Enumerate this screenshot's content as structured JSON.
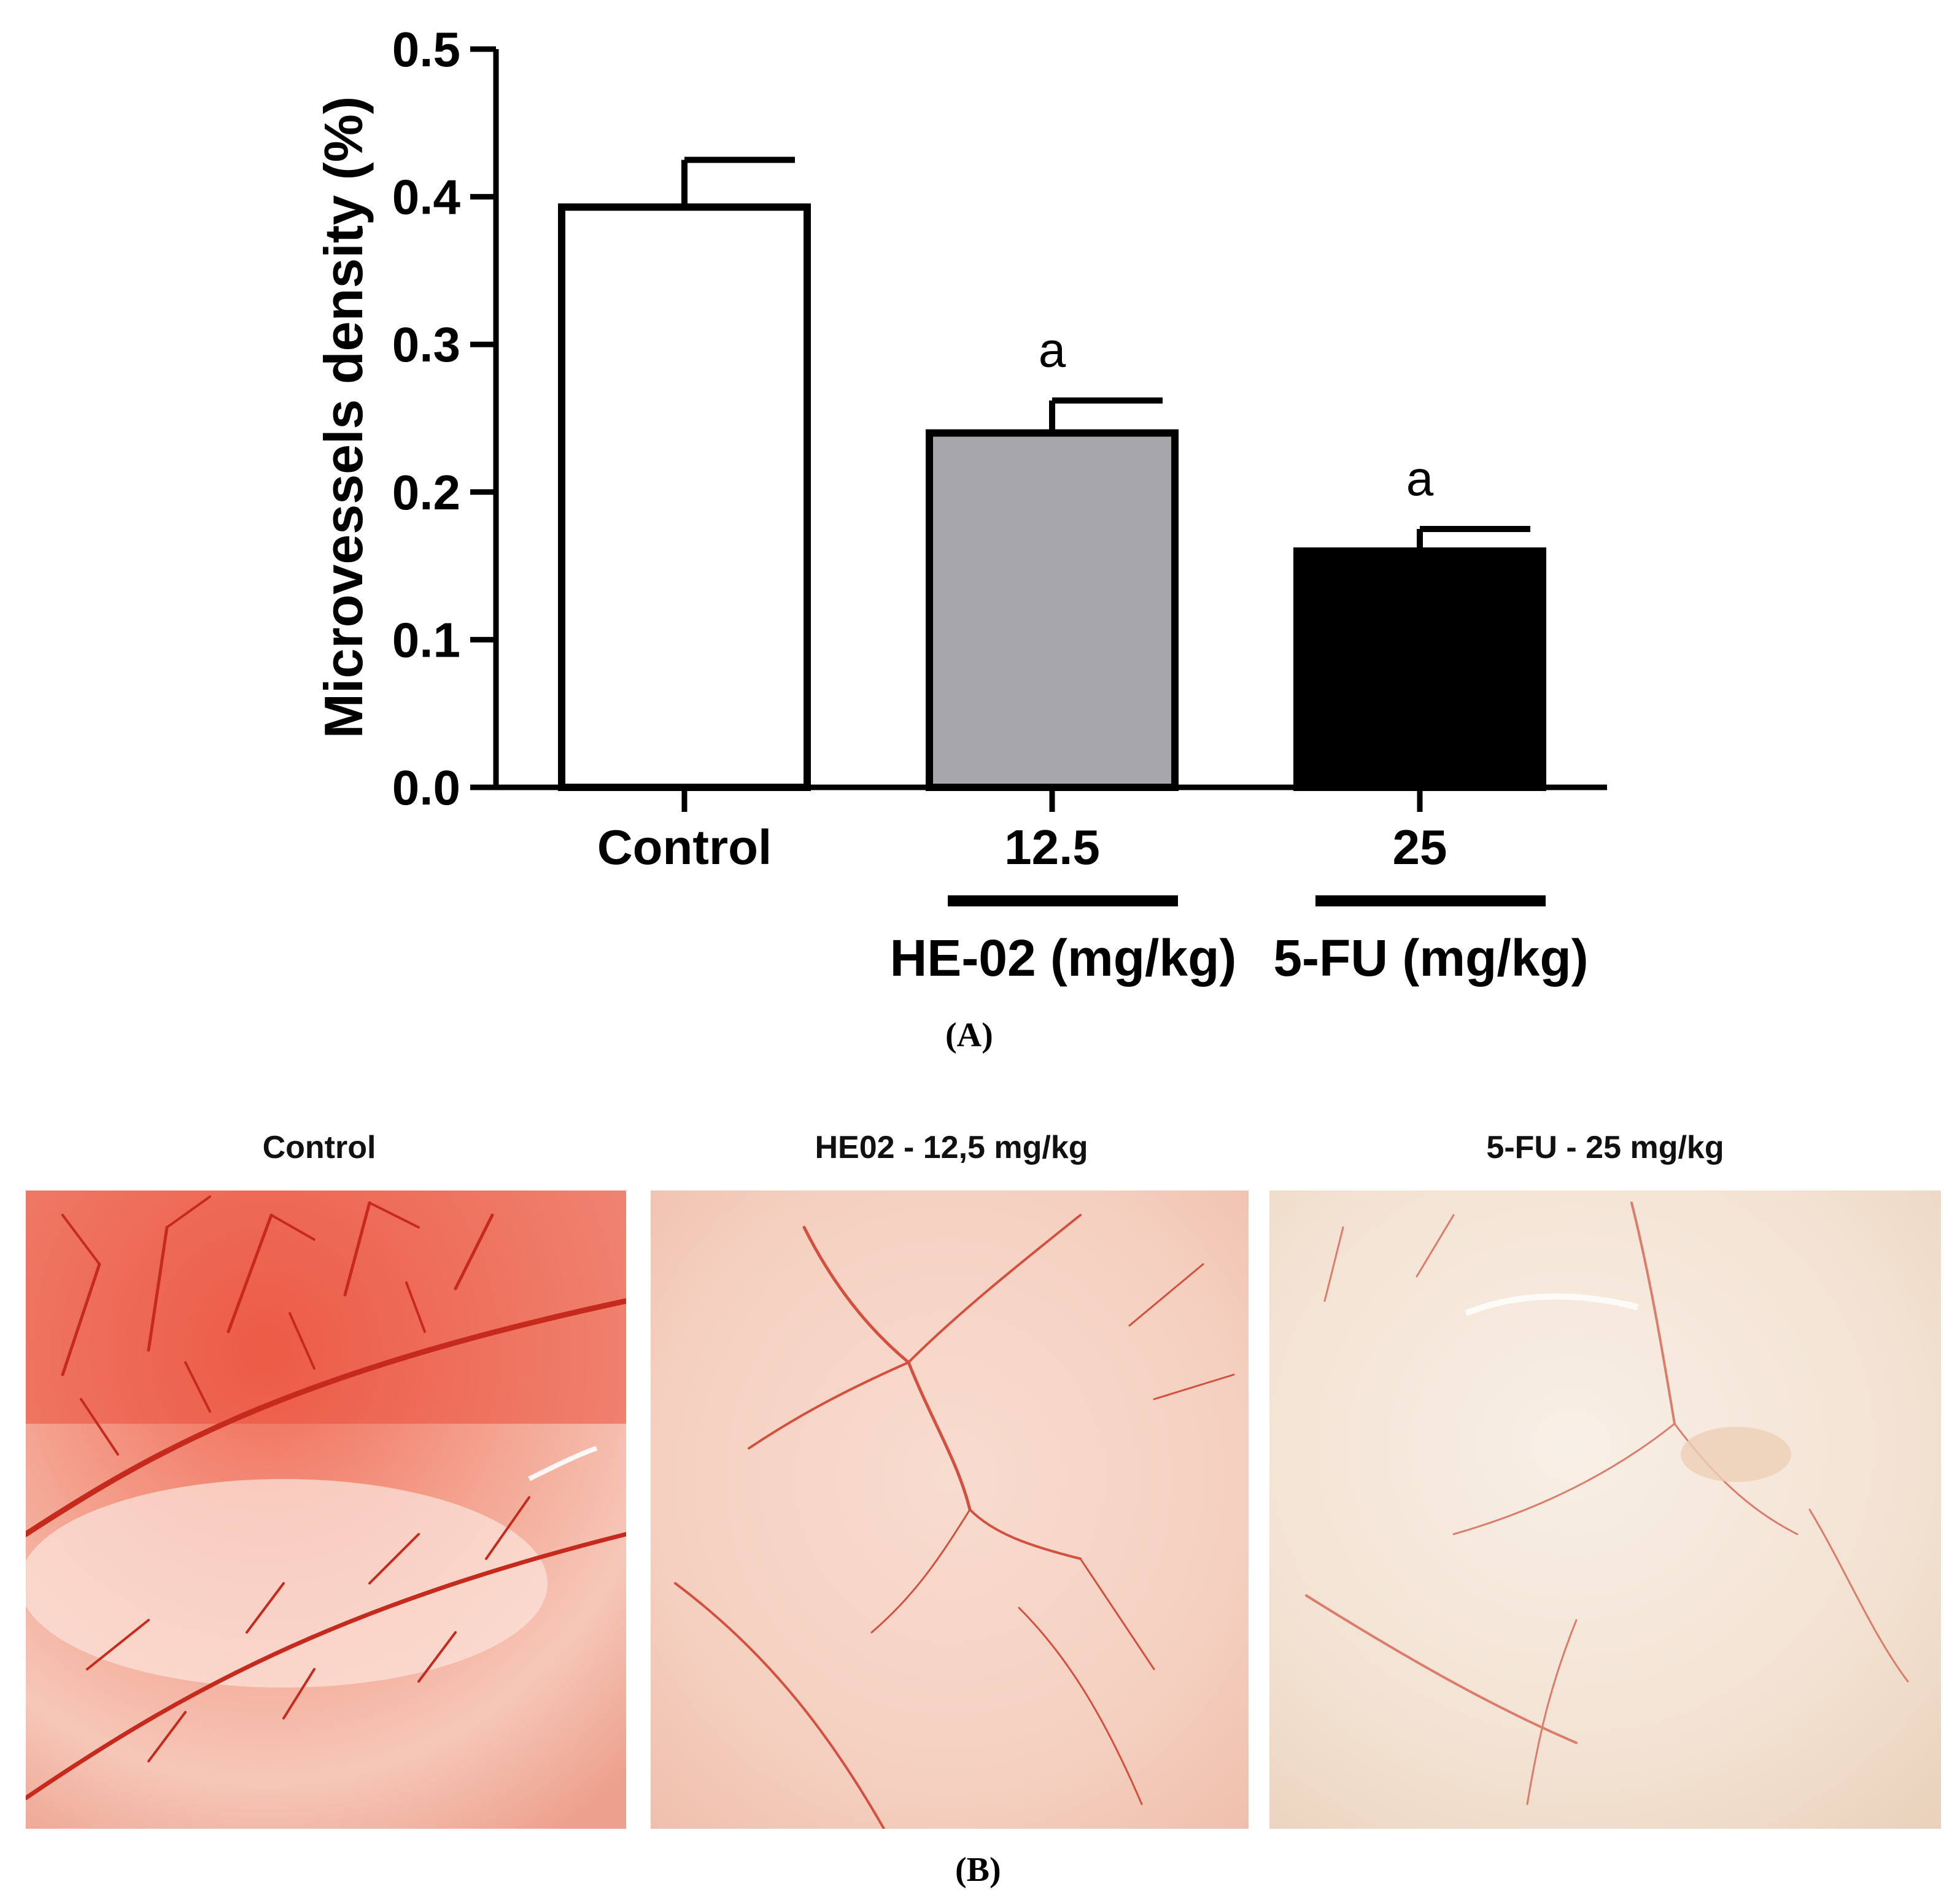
{
  "chart_data": {
    "type": "bar",
    "categories": [
      "Control",
      "12.5",
      "25"
    ],
    "values": [
      0.393,
      0.24,
      0.16
    ],
    "errors": [
      0.032,
      0.022,
      0.015
    ],
    "bar_colors": [
      "#ffffff",
      "#a7a6ab",
      "#000000"
    ],
    "annotations": [
      "",
      "a",
      "a"
    ],
    "group_labels": [
      {
        "label": "HE-02 (mg/kg)",
        "categories": [
          "12.5"
        ]
      },
      {
        "label": "5-FU (mg/kg)",
        "categories": [
          "25"
        ]
      }
    ],
    "ylabel": "Microvessels density (%)",
    "ylim": [
      0,
      0.5
    ],
    "yticks": [
      "0.0",
      "0.1",
      "0.2",
      "0.3",
      "0.4",
      "0.5"
    ],
    "grid": false
  },
  "panel_a_label": "(A)",
  "panel_b_label": "(B)",
  "photos": [
    {
      "title": "Control",
      "vascularization": "dense"
    },
    {
      "title": "HE02 - 12,5 mg/kg",
      "vascularization": "moderate"
    },
    {
      "title": "5-FU - 25 mg/kg",
      "vascularization": "sparse"
    }
  ]
}
